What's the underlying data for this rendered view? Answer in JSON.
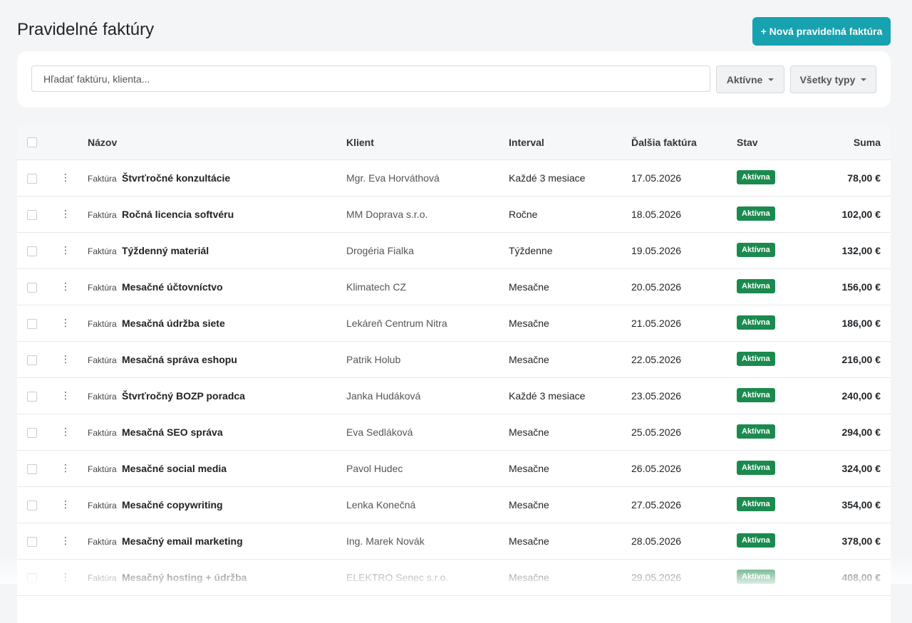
{
  "header": {
    "title": "Pravidelné faktúry",
    "button": "+ Nová pravidelná faktúra"
  },
  "filters": {
    "search_placeholder": "Hľadať faktúru, klienta...",
    "status": "Aktívne",
    "type": "Všetky typy"
  },
  "table": {
    "columns": [
      "Názov",
      "Klient",
      "Interval",
      "Ďalšia faktúra",
      "Stav",
      "Suma"
    ],
    "rows": [
      [
        "Faktúra",
        "Štvrťročné konzultácie",
        "Mgr. Eva Horváthová",
        "Každé 3 mesiace",
        "17.05.2026",
        "Aktívna",
        "78,00 €"
      ],
      [
        "Faktúra",
        "Ročná licencia softvéru",
        "MM Doprava s.r.o.",
        "Ročne",
        "18.05.2026",
        "Aktívna",
        "102,00 €"
      ],
      [
        "Faktúra",
        "Týždenný materiál",
        "Drogéria Fialka",
        "Týždenne",
        "19.05.2026",
        "Aktívna",
        "132,00 €"
      ],
      [
        "Faktúra",
        "Mesačné účtovníctvo",
        "Klimatech CZ",
        "Mesačne",
        "20.05.2026",
        "Aktívna",
        "156,00 €"
      ],
      [
        "Faktúra",
        "Mesačná údržba siete",
        "Lekáreň Centrum Nitra",
        "Mesačne",
        "21.05.2026",
        "Aktívna",
        "186,00 €"
      ],
      [
        "Faktúra",
        "Mesačná správa eshopu",
        "Patrik Holub",
        "Mesačne",
        "22.05.2026",
        "Aktívna",
        "216,00 €"
      ],
      [
        "Faktúra",
        "Štvrťročný BOZP poradca",
        "Janka Hudáková",
        "Každé 3 mesiace",
        "23.05.2026",
        "Aktívna",
        "240,00 €"
      ],
      [
        "Faktúra",
        "Mesačná SEO správa",
        "Eva Sedláková",
        "Mesačne",
        "25.05.2026",
        "Aktívna",
        "294,00 €"
      ],
      [
        "Faktúra",
        "Mesačné social media",
        "Pavol Hudec",
        "Mesačne",
        "26.05.2026",
        "Aktívna",
        "324,00 €"
      ],
      [
        "Faktúra",
        "Mesačné copywriting",
        "Lenka Konečná",
        "Mesačne",
        "27.05.2026",
        "Aktívna",
        "354,00 €"
      ],
      [
        "Faktúra",
        "Mesačný email marketing",
        "Ing. Marek Novák",
        "Mesačne",
        "28.05.2026",
        "Aktívna",
        "378,00 €"
      ],
      [
        "Faktúra",
        "Mesačný hosting + údržba",
        "ELEKTRO Senec s.r.o.",
        "Mesačne",
        "29.05.2026",
        "Aktívna",
        "408,00 €"
      ]
    ]
  }
}
